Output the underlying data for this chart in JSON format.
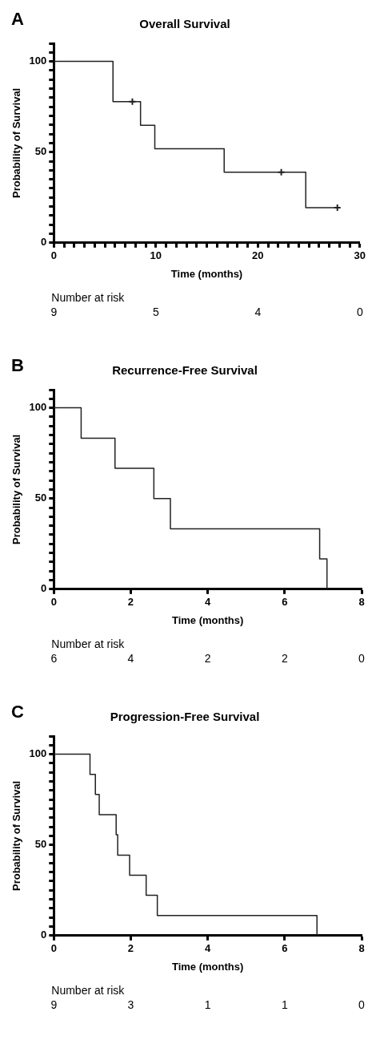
{
  "chart_data": [
    {
      "type": "step",
      "title": "Overall Survival",
      "xlabel": "Time (months)",
      "ylabel": "Probability of Survival",
      "series": [
        {
          "color": "#222222",
          "x": [
            0,
            5.8,
            8.5,
            9.9,
            16.7,
            24.7,
            27.8
          ],
          "values": [
            100,
            77.8,
            64.8,
            51.9,
            38.9,
            19.4,
            19.4
          ]
        },
        {
          "type": "scatter",
          "marker": "cross",
          "color": "#222222",
          "x": [
            7.7,
            22.3,
            27.8
          ],
          "values": [
            77.8,
            38.9,
            19.4
          ]
        }
      ],
      "xlim": [
        0,
        30
      ],
      "ylim": [
        0,
        110
      ],
      "xticks": [
        0,
        {
          "value": 1,
          "label": null
        },
        {
          "value": 2,
          "label": null
        },
        {
          "value": 3,
          "label": null
        },
        {
          "value": 4,
          "label": null
        },
        {
          "value": 5,
          "label": null
        },
        {
          "value": 6,
          "label": null
        },
        {
          "value": 7,
          "label": null
        },
        {
          "value": 8,
          "label": null
        },
        {
          "value": 9,
          "label": null
        },
        10,
        {
          "value": 11,
          "label": null
        },
        {
          "value": 12,
          "label": null
        },
        {
          "value": 13,
          "label": null
        },
        {
          "value": 14,
          "label": null
        },
        {
          "value": 15,
          "label": null
        },
        {
          "value": 16,
          "label": null
        },
        {
          "value": 17,
          "label": null
        },
        {
          "value": 18,
          "label": null
        },
        {
          "value": 19,
          "label": null
        },
        20,
        {
          "value": 21,
          "label": null
        },
        {
          "value": 22,
          "label": null
        },
        {
          "value": 23,
          "label": null
        },
        {
          "value": 24,
          "label": null
        },
        {
          "value": 25,
          "label": null
        },
        {
          "value": 26,
          "label": null
        },
        {
          "value": 27,
          "label": null
        },
        {
          "value": 28,
          "label": null
        },
        {
          "value": 29,
          "label": null
        },
        30
      ],
      "yticks": [
        0,
        {
          "value": 5,
          "label": null
        },
        {
          "value": 10,
          "label": null
        },
        {
          "value": 15,
          "label": null
        },
        {
          "value": 20,
          "label": null
        },
        {
          "value": 25,
          "label": null
        },
        {
          "value": 30,
          "label": null
        },
        {
          "value": 35,
          "label": null
        },
        {
          "value": 40,
          "label": null
        },
        {
          "value": 45,
          "label": null
        },
        50,
        {
          "value": 55,
          "label": null
        },
        {
          "value": 60,
          "label": null
        },
        {
          "value": 65,
          "label": null
        },
        {
          "value": 70,
          "label": null
        },
        {
          "value": 75,
          "label": null
        },
        {
          "value": 80,
          "label": null
        },
        {
          "value": 85,
          "label": null
        },
        {
          "value": 90,
          "label": null
        },
        {
          "value": 95,
          "label": null
        },
        100,
        {
          "value": 105,
          "label": null
        },
        {
          "value": 110,
          "label": null
        }
      ],
      "grid": false,
      "legend": false,
      "annotations": [
        "A",
        "Number at risk",
        "9",
        "5",
        "4",
        "0"
      ]
    },
    {
      "type": "step",
      "title": "Recurrence-Free Survival",
      "xlabel": "Time (months)",
      "ylabel": "Probability of Survival",
      "series": [
        {
          "color": "#222222",
          "x": [
            0,
            0.71,
            1.59,
            2.6,
            3.03,
            6.91,
            7.1
          ],
          "values": [
            100,
            83.3,
            66.7,
            50,
            33.3,
            16.7,
            0
          ]
        }
      ],
      "xlim": [
        0,
        8
      ],
      "ylim": [
        0,
        110
      ],
      "xticks": [
        0,
        2,
        4,
        6,
        8
      ],
      "yticks": [
        0,
        {
          "value": 5,
          "label": null
        },
        {
          "value": 10,
          "label": null
        },
        {
          "value": 15,
          "label": null
        },
        {
          "value": 20,
          "label": null
        },
        {
          "value": 25,
          "label": null
        },
        {
          "value": 30,
          "label": null
        },
        {
          "value": 35,
          "label": null
        },
        {
          "value": 40,
          "label": null
        },
        {
          "value": 45,
          "label": null
        },
        50,
        {
          "value": 55,
          "label": null
        },
        {
          "value": 60,
          "label": null
        },
        {
          "value": 65,
          "label": null
        },
        {
          "value": 70,
          "label": null
        },
        {
          "value": 75,
          "label": null
        },
        {
          "value": 80,
          "label": null
        },
        {
          "value": 85,
          "label": null
        },
        {
          "value": 90,
          "label": null
        },
        {
          "value": 95,
          "label": null
        },
        100,
        {
          "value": 105,
          "label": null
        },
        {
          "value": 110,
          "label": null
        }
      ],
      "grid": false,
      "legend": false,
      "annotations": [
        "B",
        "Number at risk",
        "6",
        "4",
        "2",
        "2",
        "0"
      ]
    },
    {
      "type": "step",
      "title": "Progression-Free Survival",
      "xlabel": "Time (months)",
      "ylabel": "Probability of Survival",
      "series": [
        {
          "color": "#222222",
          "x": [
            0,
            0.94,
            1.08,
            1.18,
            1.62,
            1.66,
            1.97,
            2.4,
            2.69,
            6.84
          ],
          "values": [
            100,
            88.9,
            77.8,
            66.7,
            55.6,
            44.4,
            33.3,
            22.2,
            11.1,
            0
          ]
        }
      ],
      "xlim": [
        0,
        8
      ],
      "ylim": [
        0,
        110
      ],
      "xticks": [
        0,
        2,
        4,
        6,
        8
      ],
      "yticks": [
        0,
        {
          "value": 5,
          "label": null
        },
        {
          "value": 10,
          "label": null
        },
        {
          "value": 15,
          "label": null
        },
        {
          "value": 20,
          "label": null
        },
        {
          "value": 25,
          "label": null
        },
        {
          "value": 30,
          "label": null
        },
        {
          "value": 35,
          "label": null
        },
        {
          "value": 40,
          "label": null
        },
        {
          "value": 45,
          "label": null
        },
        50,
        {
          "value": 55,
          "label": null
        },
        {
          "value": 60,
          "label": null
        },
        {
          "value": 65,
          "label": null
        },
        {
          "value": 70,
          "label": null
        },
        {
          "value": 75,
          "label": null
        },
        {
          "value": 80,
          "label": null
        },
        {
          "value": 85,
          "label": null
        },
        {
          "value": 90,
          "label": null
        },
        {
          "value": 95,
          "label": null
        },
        100,
        {
          "value": 105,
          "label": null
        },
        {
          "value": 110,
          "label": null
        }
      ],
      "grid": false,
      "legend": false,
      "annotations": [
        "C",
        "Number at risk",
        "9",
        "3",
        "1",
        "1",
        "0"
      ]
    }
  ]
}
